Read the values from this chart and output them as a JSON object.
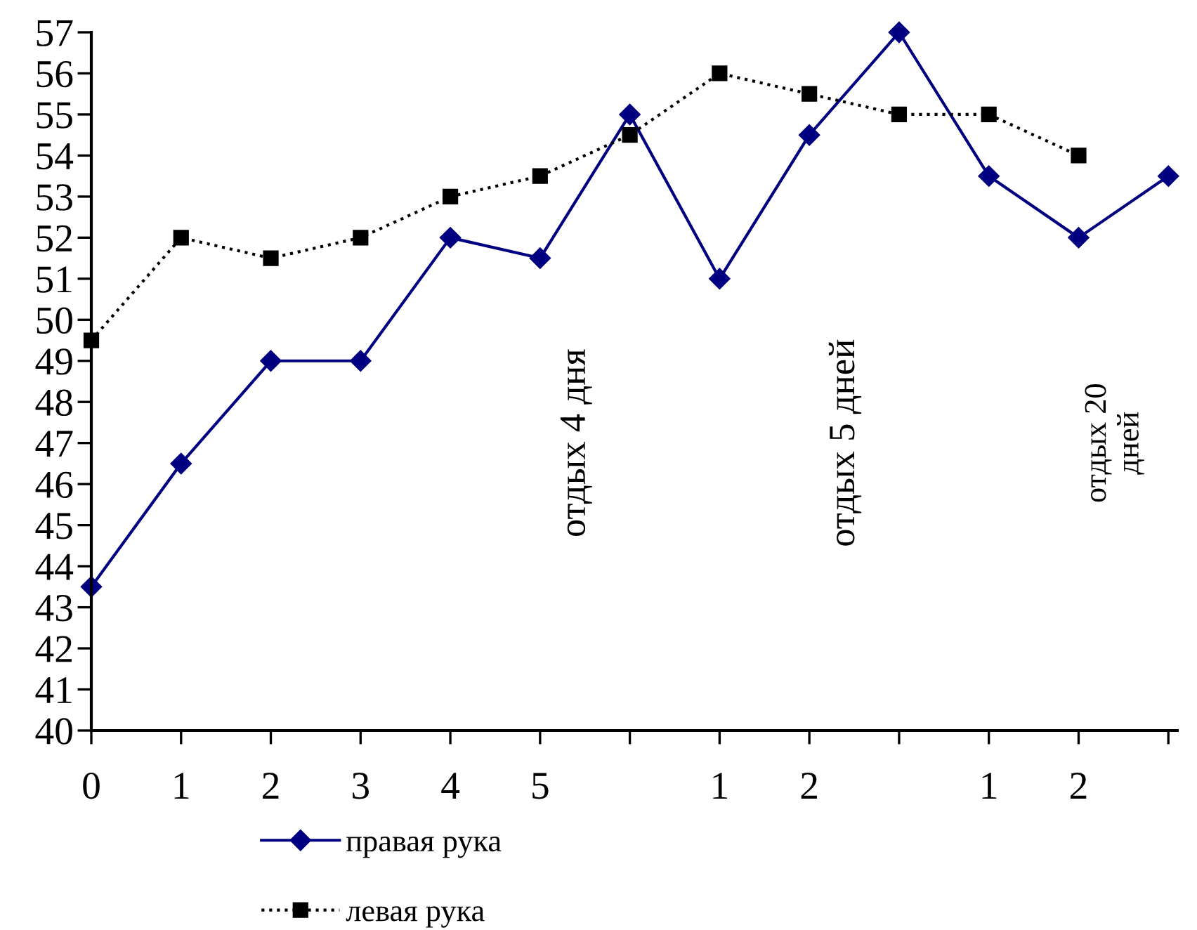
{
  "chart_data": {
    "type": "line",
    "categories": [
      "0",
      "1",
      "2",
      "3",
      "4",
      "5",
      null,
      "1",
      "2",
      null,
      "1",
      "2",
      null
    ],
    "series": [
      {
        "name": "правая рука",
        "color": "#000080",
        "marker": "diamond",
        "line_style": "solid",
        "values": [
          43.5,
          46.5,
          49,
          49,
          52,
          51.5,
          55,
          51,
          54.5,
          57,
          53.5,
          52,
          53.5
        ]
      },
      {
        "name": "левая рука",
        "color": "#000000",
        "marker": "square",
        "line_style": "dotted",
        "values": [
          49.5,
          52,
          51.5,
          52,
          53,
          53.5,
          54.5,
          56,
          55.5,
          55,
          55,
          54,
          null
        ]
      }
    ],
    "ylim": [
      40,
      57
    ],
    "yticks": [
      40,
      41,
      42,
      43,
      44,
      45,
      46,
      47,
      48,
      49,
      50,
      51,
      52,
      53,
      54,
      55,
      56,
      57
    ],
    "annotations": [
      "отдых 4 дня",
      "отдых 5 дней",
      "отдых 20\nдней"
    ],
    "grid": false,
    "legend": "bottom"
  }
}
